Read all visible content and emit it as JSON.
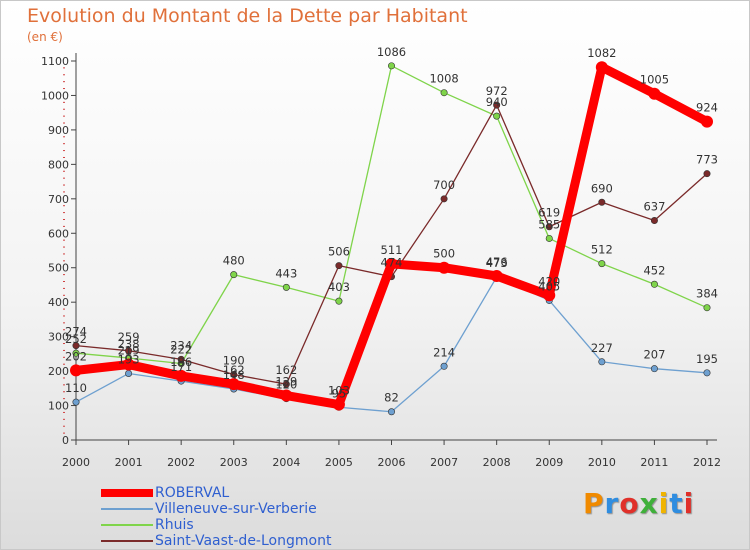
{
  "page": {
    "title": "Evolution du Montant de la Dette par Habitant",
    "subtitle": "(en €)",
    "logo": "Proxiti",
    "logo_colors": [
      "#f08a00",
      "#2f8de0",
      "#e0302a",
      "#3fb03a",
      "#f0b400",
      "#2f8de0",
      "#e0302a"
    ]
  },
  "chart_data": {
    "type": "line",
    "title": "Evolution du Montant de la Dette par Habitant",
    "subtitle": "(en €)",
    "xlabel": "",
    "ylabel": "",
    "x": [
      "2000",
      "2001",
      "2002",
      "2003",
      "2004",
      "2005",
      "2006",
      "2007",
      "2008",
      "2009",
      "2010",
      "2011",
      "2012"
    ],
    "ylim": [
      0,
      1100
    ],
    "yticks": [
      0,
      100,
      200,
      300,
      400,
      500,
      600,
      700,
      800,
      900,
      1000,
      1100
    ],
    "grid": false,
    "legend": "bottom-left",
    "series": [
      {
        "name": "ROBERVAL",
        "color": "#ff0000",
        "values": [
          202,
          219,
          186,
          162,
          129,
          103,
          511,
          500,
          476,
          420,
          1082,
          1005,
          924
        ],
        "labels": [
          "202",
          "219",
          "186",
          "162",
          "129",
          "103",
          "511",
          "500",
          "476",
          "420",
          "1082",
          "1005",
          "924"
        ]
      },
      {
        "name": "Villeneuve-sur-Verberie",
        "color": "#6ea0d0",
        "values": [
          110,
          193,
          171,
          148,
          120,
          95,
          82,
          214,
          473,
          405,
          227,
          207,
          195
        ],
        "labels": [
          "110",
          "193",
          "171",
          "148",
          "120",
          "95",
          "82",
          "214",
          "473",
          "405",
          "227",
          "207",
          "195"
        ]
      },
      {
        "name": "Rhuis",
        "color": "#7fd44a",
        "values": [
          252,
          238,
          222,
          480,
          443,
          403,
          1086,
          1008,
          940,
          585,
          512,
          452,
          384
        ],
        "labels": [
          "252",
          "238",
          "222",
          "480",
          "443",
          "403",
          "1086",
          "1008",
          "940",
          "585",
          "512",
          "452",
          "384"
        ]
      },
      {
        "name": "Saint-Vaast-de-Longmont",
        "color": "#7a2a2a",
        "values": [
          274,
          259,
          234,
          190,
          162,
          506,
          474,
          700,
          972,
          619,
          690,
          637,
          773
        ],
        "labels": [
          "274",
          "259",
          "234",
          "190",
          "162",
          "506",
          "474",
          "700",
          "972",
          "619",
          "690",
          "637",
          "773"
        ]
      }
    ]
  }
}
